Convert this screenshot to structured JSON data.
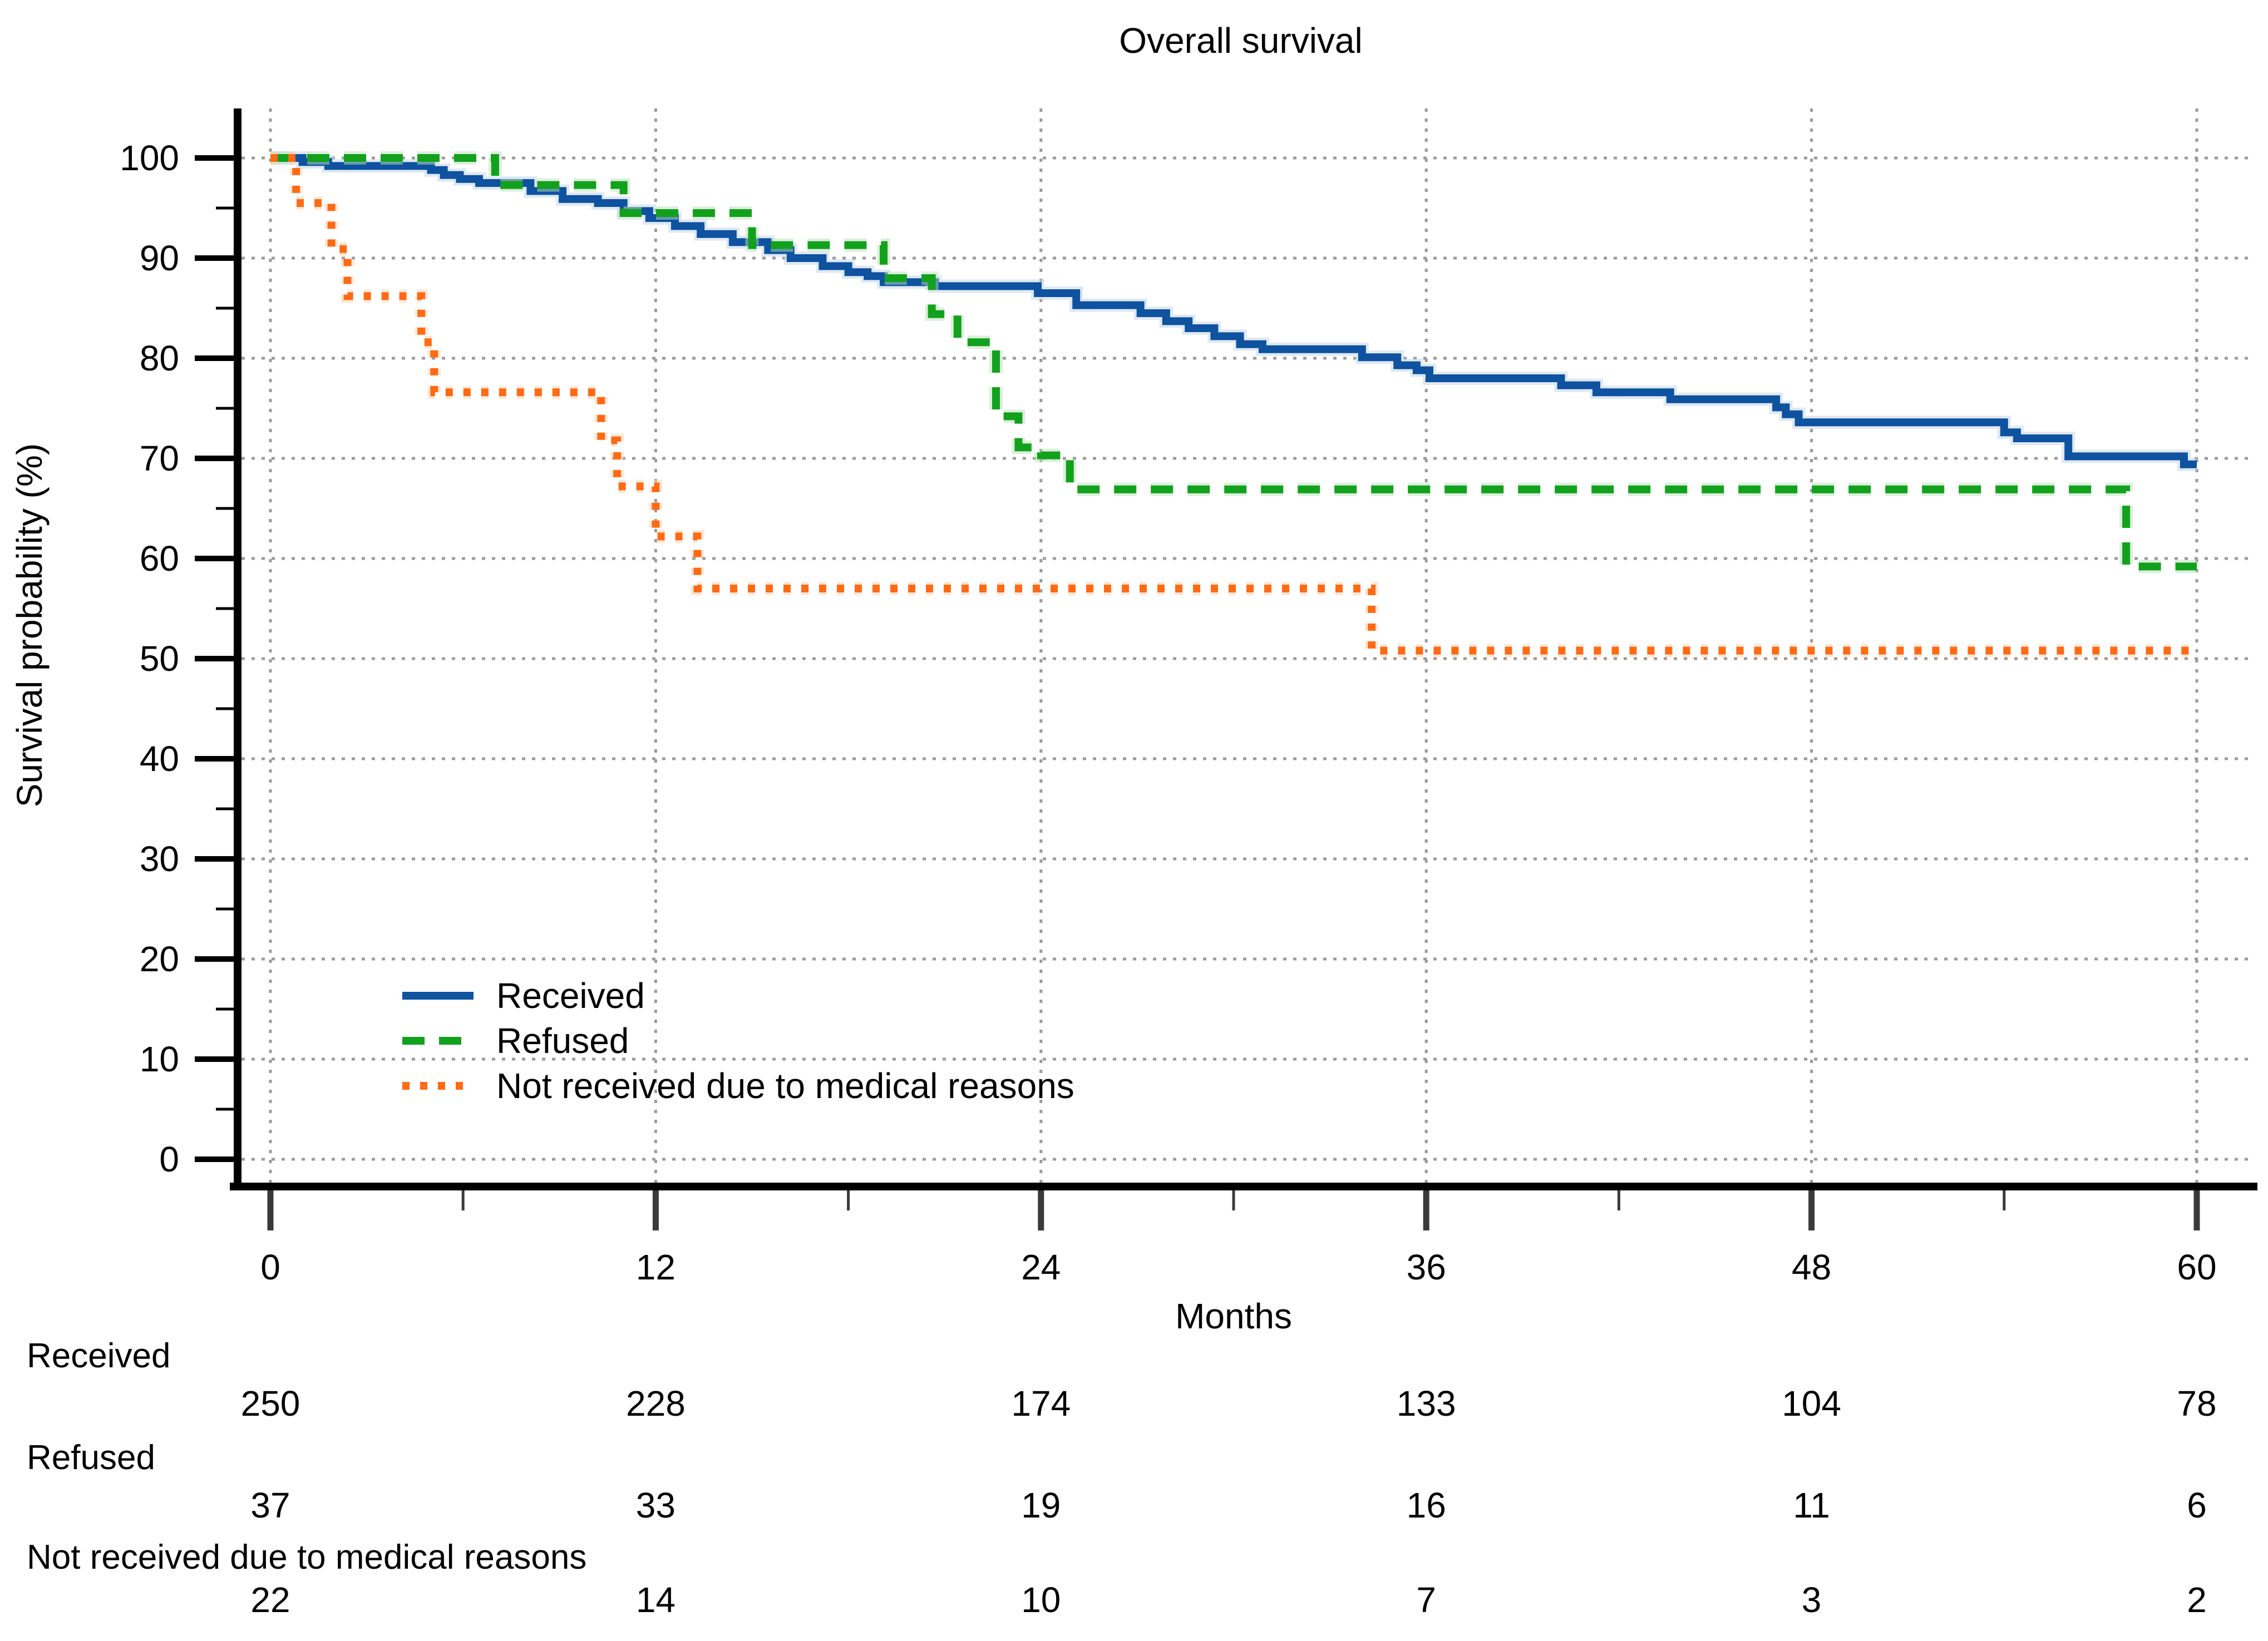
{
  "chart_data": {
    "type": "step_line",
    "title": "Overall survival",
    "xlabel": "Months",
    "ylabel": "Survival probability (%)",
    "xlim": [
      0,
      60
    ],
    "ylim": [
      0,
      100
    ],
    "x_major_ticks": [
      0,
      12,
      24,
      36,
      48,
      60
    ],
    "x_minor_ticks": [
      6,
      18,
      30,
      42,
      54
    ],
    "y_major_ticks": [
      0,
      10,
      20,
      30,
      40,
      50,
      60,
      70,
      80,
      90,
      100
    ],
    "y_minor_ticks": [
      5,
      15,
      25,
      35,
      45,
      55,
      65,
      75,
      85,
      95
    ],
    "grid": {
      "horizontal": true,
      "vertical": true,
      "color": "#9b9b9b"
    },
    "legend_position": "inside-lower-left",
    "series": [
      {
        "name": "Received",
        "color": "#0E52A0",
        "halo_color": "#BFD4EA",
        "style": "solid",
        "points": [
          [
            0,
            100
          ],
          [
            1.0,
            99.6
          ],
          [
            1.8,
            99.2
          ],
          [
            5.0,
            98.8
          ],
          [
            5.4,
            98.3
          ],
          [
            5.9,
            97.9
          ],
          [
            6.5,
            97.5
          ],
          [
            8.1,
            96.7
          ],
          [
            9.1,
            95.9
          ],
          [
            10.2,
            95.5
          ],
          [
            11.0,
            94.7
          ],
          [
            11.8,
            94.0
          ],
          [
            12.6,
            93.2
          ],
          [
            13.4,
            92.4
          ],
          [
            14.4,
            91.6
          ],
          [
            15.5,
            90.8
          ],
          [
            16.2,
            90.0
          ],
          [
            17.2,
            89.2
          ],
          [
            18.0,
            88.6
          ],
          [
            18.6,
            88.2
          ],
          [
            19.1,
            87.6
          ],
          [
            20.7,
            87.2
          ],
          [
            23.9,
            86.5
          ],
          [
            25.1,
            85.3
          ],
          [
            27.1,
            84.5
          ],
          [
            27.9,
            83.7
          ],
          [
            28.6,
            83.0
          ],
          [
            29.4,
            82.2
          ],
          [
            30.2,
            81.4
          ],
          [
            30.9,
            80.9
          ],
          [
            34.0,
            80.1
          ],
          [
            35.1,
            79.3
          ],
          [
            35.7,
            78.8
          ],
          [
            36.1,
            78.0
          ],
          [
            40.2,
            77.3
          ],
          [
            41.3,
            76.6
          ],
          [
            43.6,
            75.9
          ],
          [
            46.9,
            75.1
          ],
          [
            47.2,
            74.4
          ],
          [
            47.6,
            73.6
          ],
          [
            54.0,
            72.6
          ],
          [
            54.4,
            72.0
          ],
          [
            56.0,
            70.2
          ],
          [
            59.6,
            69.4
          ],
          [
            60,
            69.4
          ]
        ]
      },
      {
        "name": "Refused",
        "color": "#12A11C",
        "halo_color": "#B9E0B9",
        "style": "dashed",
        "points": [
          [
            0,
            100
          ],
          [
            7.0,
            97.3
          ],
          [
            11.0,
            94.5
          ],
          [
            15.0,
            91.3
          ],
          [
            19.1,
            88.0
          ],
          [
            20.6,
            84.4
          ],
          [
            21.4,
            81.6
          ],
          [
            22.6,
            74.2
          ],
          [
            23.3,
            71.1
          ],
          [
            24.0,
            70.3
          ],
          [
            24.9,
            66.9
          ],
          [
            57.8,
            59.2
          ],
          [
            60,
            59.2
          ]
        ]
      },
      {
        "name": "Not received due to medical reasons",
        "color": "#FF6A14",
        "halo_color": "#FFD2B0",
        "style": "dotted",
        "points": [
          [
            0,
            100
          ],
          [
            0.8,
            95.5
          ],
          [
            1.9,
            90.9
          ],
          [
            2.4,
            86.2
          ],
          [
            4.7,
            81.6
          ],
          [
            5.1,
            76.6
          ],
          [
            10.3,
            71.8
          ],
          [
            10.8,
            67.2
          ],
          [
            12.0,
            62.2
          ],
          [
            13.3,
            57.0
          ],
          [
            34.3,
            50.8
          ],
          [
            60,
            50.8
          ]
        ]
      }
    ]
  },
  "risk_table": {
    "columns_months": [
      0,
      12,
      24,
      36,
      48,
      60
    ],
    "groups": [
      {
        "label": "Received",
        "counts": [
          250,
          228,
          174,
          133,
          104,
          78
        ]
      },
      {
        "label": "Refused",
        "counts": [
          37,
          33,
          19,
          16,
          11,
          6
        ]
      },
      {
        "label": "Not received due to medical reasons",
        "counts": [
          22,
          14,
          10,
          7,
          3,
          2
        ]
      }
    ],
    "label_color": "#2222BB",
    "value_color": "#000000"
  },
  "colors": {
    "axis": "#000000",
    "grid": "#9b9b9b",
    "background": "#ffffff"
  }
}
